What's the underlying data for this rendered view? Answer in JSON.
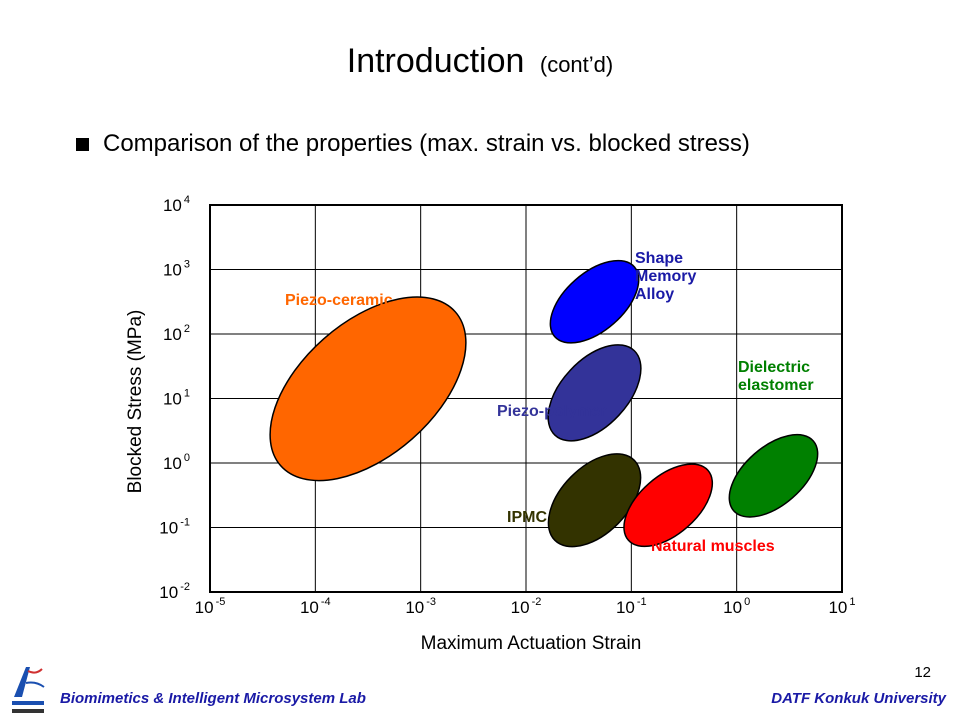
{
  "slide": {
    "title": "Introduction",
    "title_suffix": "(cont’d)",
    "bullet": "Comparison of the properties (max. strain vs. blocked stress)",
    "page_number": "12",
    "footer_left": "Biomimetics & Intelligent Microsystem Lab",
    "footer_right": "DATF Konkuk University"
  },
  "chart_data": {
    "type": "scatter",
    "title": "",
    "xlabel": "Maximum Actuation Strain",
    "ylabel": "Blocked Stress (MPa)",
    "x_scale": "log",
    "y_scale": "log",
    "xlim": [
      1e-05,
      10
    ],
    "ylim": [
      0.01,
      10000
    ],
    "x_ticks": [
      {
        "base": "10",
        "exp": "-5"
      },
      {
        "base": "10",
        "exp": "-4"
      },
      {
        "base": "10",
        "exp": "-3"
      },
      {
        "base": "10",
        "exp": "-2"
      },
      {
        "base": "10",
        "exp": "-1"
      },
      {
        "base": "10",
        "exp": "0"
      },
      {
        "base": "10",
        "exp": "1"
      }
    ],
    "y_ticks": [
      {
        "base": "10",
        "exp": "4"
      },
      {
        "base": "10",
        "exp": "3"
      },
      {
        "base": "10",
        "exp": "2"
      },
      {
        "base": "10",
        "exp": "1"
      },
      {
        "base": "10",
        "exp": "0"
      },
      {
        "base": "10",
        "exp": "-1"
      },
      {
        "base": "10",
        "exp": "-2"
      }
    ],
    "grid": true,
    "regions": [
      {
        "name": "Piezo-ceramic",
        "strain_range": [
          5e-05,
          0.002
        ],
        "stress_range": [
          1,
          200
        ],
        "color": "#ff6600",
        "label_color": "#ff6600"
      },
      {
        "name": "Shape Memory Alloy",
        "label_lines": [
          "Shape",
          "Memory",
          "Alloy"
        ],
        "strain_range": [
          0.02,
          0.1
        ],
        "stress_range": [
          100,
          1000
        ],
        "color": "#0000ff",
        "label_color": "#1a1aa6"
      },
      {
        "name": "Piezo-polymer",
        "strain_range": [
          0.02,
          0.1
        ],
        "stress_range": [
          3,
          50
        ],
        "color": "#333399",
        "label_color": "#333399"
      },
      {
        "name": "Dielectric elastomer",
        "label_lines": [
          "Dielectric",
          "elastomer"
        ],
        "strain_range": [
          1,
          5
        ],
        "stress_range": [
          0.2,
          2
        ],
        "color": "#008000",
        "label_color": "#008000"
      },
      {
        "name": "IPMC",
        "strain_range": [
          0.02,
          0.1
        ],
        "stress_range": [
          0.07,
          1
        ],
        "color": "#333300",
        "label_color": "#333300"
      },
      {
        "name": "Natural muscles",
        "strain_range": [
          0.1,
          0.5
        ],
        "stress_range": [
          0.07,
          0.7
        ],
        "color": "#ff0000",
        "label_color": "#ff0000"
      }
    ]
  }
}
